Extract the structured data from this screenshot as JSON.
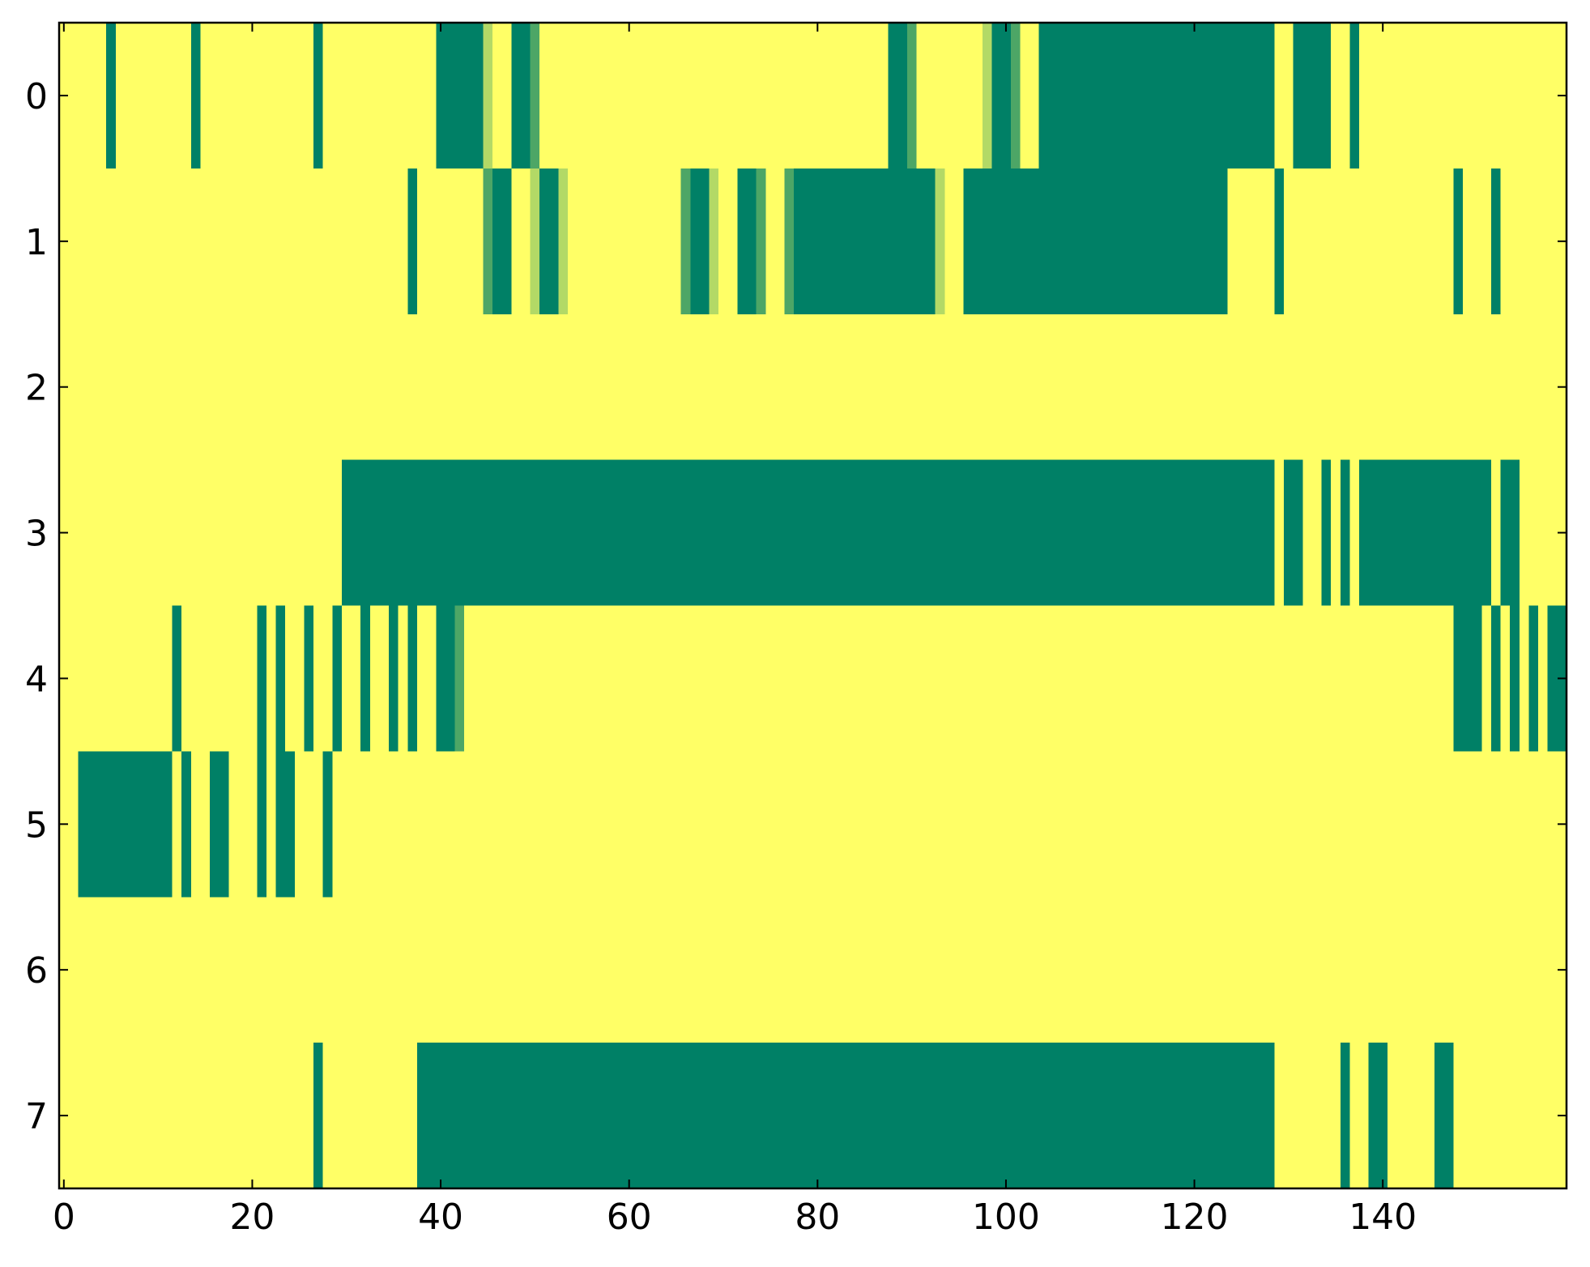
{
  "chart_data": {
    "type": "heatmap",
    "xlim": [
      -0.5,
      159.5
    ],
    "ylim": [
      7.5,
      -0.5
    ],
    "xticks": [
      0,
      20,
      40,
      60,
      80,
      100,
      120,
      140
    ],
    "yticks": [
      0,
      1,
      2,
      3,
      4,
      5,
      6,
      7
    ],
    "clim": [
      0,
      1
    ],
    "colors": [
      "#008066",
      "#ffff66"
    ],
    "z": [
      [
        1,
        1,
        1,
        1,
        1,
        0,
        1,
        1,
        1,
        1,
        1,
        1,
        1,
        1,
        0,
        1,
        1,
        1,
        1,
        1,
        1,
        1,
        1,
        1,
        1,
        1,
        1,
        0,
        1,
        1,
        1,
        1,
        1,
        1,
        1,
        1,
        1,
        1,
        1,
        1,
        0,
        0,
        0,
        0,
        0,
        0.7,
        1,
        1,
        0,
        0,
        0.3,
        1,
        1,
        1,
        1,
        1,
        1,
        1,
        1,
        1,
        1,
        1,
        1,
        1,
        1,
        1,
        1,
        1,
        1,
        1,
        1,
        1,
        1,
        1,
        1,
        1,
        1,
        1,
        1,
        1,
        1,
        1,
        1,
        1,
        1,
        1,
        1,
        1,
        0,
        0,
        0.3,
        1,
        1,
        1,
        1,
        1,
        1,
        1,
        0.7,
        0,
        0,
        0.3,
        1,
        1,
        0,
        0,
        0,
        0,
        0,
        0,
        0,
        0,
        0,
        0,
        0,
        0,
        0,
        0,
        0,
        0,
        0,
        0,
        0,
        0,
        0,
        0,
        0,
        0,
        0,
        1,
        1,
        0,
        0,
        0,
        0,
        1,
        1,
        0,
        1,
        1,
        1,
        1,
        1,
        1,
        1,
        1,
        1,
        1,
        1,
        1,
        1,
        1,
        1,
        1,
        1,
        1,
        1,
        1,
        1,
        1
      ],
      [
        1,
        1,
        1,
        1,
        1,
        1,
        1,
        1,
        1,
        1,
        1,
        1,
        1,
        1,
        1,
        1,
        1,
        1,
        1,
        1,
        1,
        1,
        1,
        1,
        1,
        1,
        1,
        1,
        1,
        1,
        1,
        1,
        1,
        1,
        1,
        1,
        1,
        0,
        1,
        1,
        1,
        1,
        1,
        1,
        1,
        0.3,
        0,
        0,
        1,
        1,
        0.7,
        0,
        0,
        0.7,
        1,
        1,
        1,
        1,
        1,
        1,
        1,
        1,
        1,
        1,
        1,
        1,
        0.3,
        0,
        0,
        0.7,
        1,
        1,
        0,
        0,
        0.3,
        1,
        1,
        0.3,
        0,
        0,
        0,
        0,
        0,
        0,
        0,
        0,
        0,
        0,
        0,
        0,
        0,
        0,
        0,
        0.7,
        1,
        1,
        0,
        0,
        0,
        0,
        0,
        0,
        0,
        0,
        0,
        0,
        0,
        0,
        0,
        0,
        0,
        0,
        0,
        0,
        0,
        0,
        0,
        0,
        0,
        0,
        0,
        0,
        0,
        0,
        1,
        1,
        1,
        1,
        1,
        0,
        1,
        1,
        1,
        1,
        1,
        1,
        1,
        1,
        1,
        1,
        1,
        1,
        1,
        1,
        1,
        1,
        1,
        1,
        0,
        1,
        1,
        1,
        0,
        1,
        1,
        1,
        1,
        1,
        1,
        1
      ],
      [
        1,
        1,
        1,
        1,
        1,
        1,
        1,
        1,
        1,
        1,
        1,
        1,
        1,
        1,
        1,
        1,
        1,
        1,
        1,
        1,
        1,
        1,
        1,
        1,
        1,
        1,
        1,
        1,
        1,
        1,
        1,
        1,
        1,
        1,
        1,
        1,
        1,
        1,
        1,
        1,
        1,
        1,
        1,
        1,
        1,
        1,
        1,
        1,
        1,
        1,
        1,
        1,
        1,
        1,
        1,
        1,
        1,
        1,
        1,
        1,
        1,
        1,
        1,
        1,
        1,
        1,
        1,
        1,
        1,
        1,
        1,
        1,
        1,
        1,
        1,
        1,
        1,
        1,
        1,
        1,
        1,
        1,
        1,
        1,
        1,
        1,
        1,
        1,
        1,
        1,
        1,
        1,
        1,
        1,
        1,
        1,
        1,
        1,
        1,
        1,
        1,
        1,
        1,
        1,
        1,
        1,
        1,
        1,
        1,
        1,
        1,
        1,
        1,
        1,
        1,
        1,
        1,
        1,
        1,
        1,
        1,
        1,
        1,
        1,
        1,
        1,
        1,
        1,
        1,
        1,
        1,
        1,
        1,
        1,
        1,
        1,
        1,
        1,
        1,
        1,
        1,
        1,
        1,
        1,
        1,
        1,
        1,
        1,
        1,
        1,
        1,
        1,
        1,
        1,
        1,
        1,
        1,
        1,
        1,
        1
      ],
      [
        1,
        1,
        1,
        1,
        1,
        1,
        1,
        1,
        1,
        1,
        1,
        1,
        1,
        1,
        1,
        1,
        1,
        1,
        1,
        1,
        1,
        1,
        1,
        1,
        1,
        1,
        1,
        1,
        1,
        1,
        0,
        0,
        0,
        0,
        0,
        0,
        0,
        0,
        0,
        0,
        0,
        0,
        0,
        0,
        0,
        0,
        0,
        0,
        0,
        0,
        0,
        0,
        0,
        0,
        0,
        0,
        0,
        0,
        0,
        0,
        0,
        0,
        0,
        0,
        0,
        0,
        0,
        0,
        0,
        0,
        0,
        0,
        0,
        0,
        0,
        0,
        0,
        0,
        0,
        0,
        0,
        0,
        0,
        0,
        0,
        0,
        0,
        0,
        0,
        0,
        0,
        0,
        0,
        0,
        0,
        0,
        0,
        0,
        0,
        0,
        0,
        0,
        0,
        0,
        0,
        0,
        0,
        0,
        0,
        0,
        0,
        0,
        0,
        0,
        0,
        0,
        0,
        0,
        0,
        0,
        0,
        0,
        0,
        0,
        0,
        0,
        0,
        0,
        0,
        1,
        0,
        0,
        1,
        1,
        0,
        1,
        0,
        1,
        0,
        0,
        0,
        0,
        0,
        0,
        0,
        0,
        0,
        0,
        0,
        0,
        0,
        0,
        1,
        0,
        0,
        1,
        1,
        1,
        1,
        1
      ],
      [
        1,
        1,
        1,
        1,
        1,
        1,
        1,
        1,
        1,
        1,
        1,
        1,
        0,
        1,
        1,
        1,
        1,
        1,
        1,
        1,
        1,
        0,
        1,
        0,
        1,
        1,
        0,
        1,
        1,
        0,
        1,
        1,
        0,
        1,
        1,
        0,
        1,
        0,
        1,
        1,
        0,
        0,
        0.3,
        1,
        1,
        1,
        1,
        1,
        1,
        1,
        1,
        1,
        1,
        1,
        1,
        1,
        1,
        1,
        1,
        1,
        1,
        1,
        1,
        1,
        1,
        1,
        1,
        1,
        1,
        1,
        1,
        1,
        1,
        1,
        1,
        1,
        1,
        1,
        1,
        1,
        1,
        1,
        1,
        1,
        1,
        1,
        1,
        1,
        1,
        1,
        1,
        1,
        1,
        1,
        1,
        1,
        1,
        1,
        1,
        1,
        1,
        1,
        1,
        1,
        1,
        1,
        1,
        1,
        1,
        1,
        1,
        1,
        1,
        1,
        1,
        1,
        1,
        1,
        1,
        1,
        1,
        1,
        1,
        1,
        1,
        1,
        1,
        1,
        1,
        1,
        1,
        1,
        1,
        1,
        1,
        1,
        1,
        1,
        1,
        1,
        1,
        1,
        1,
        1,
        1,
        1,
        1,
        1,
        0,
        0,
        0,
        1,
        0,
        1,
        0,
        1,
        0,
        1,
        0,
        0
      ],
      [
        1,
        1,
        0,
        0,
        0,
        0,
        0,
        0,
        0,
        0,
        0,
        0,
        1,
        0,
        1,
        1,
        0,
        0,
        1,
        1,
        1,
        0,
        1,
        0,
        0,
        1,
        1,
        1,
        0,
        1,
        1,
        1,
        1,
        1,
        1,
        1,
        1,
        1,
        1,
        1,
        1,
        1,
        1,
        1,
        1,
        1,
        1,
        1,
        1,
        1,
        1,
        1,
        1,
        1,
        1,
        1,
        1,
        1,
        1,
        1,
        1,
        1,
        1,
        1,
        1,
        1,
        1,
        1,
        1,
        1,
        1,
        1,
        1,
        1,
        1,
        1,
        1,
        1,
        1,
        1,
        1,
        1,
        1,
        1,
        1,
        1,
        1,
        1,
        1,
        1,
        1,
        1,
        1,
        1,
        1,
        1,
        1,
        1,
        1,
        1,
        1,
        1,
        1,
        1,
        1,
        1,
        1,
        1,
        1,
        1,
        1,
        1,
        1,
        1,
        1,
        1,
        1,
        1,
        1,
        1,
        1,
        1,
        1,
        1,
        1,
        1,
        1,
        1,
        1,
        1,
        1,
        1,
        1,
        1,
        1,
        1,
        1,
        1,
        1,
        1,
        1,
        1,
        1,
        1,
        1,
        1,
        1,
        1,
        1,
        1,
        1,
        1,
        1,
        1,
        1,
        1,
        1,
        1,
        1,
        1
      ],
      [
        1,
        1,
        1,
        1,
        1,
        1,
        1,
        1,
        1,
        1,
        1,
        1,
        1,
        1,
        1,
        1,
        1,
        1,
        1,
        1,
        1,
        1,
        1,
        1,
        1,
        1,
        1,
        1,
        1,
        1,
        1,
        1,
        1,
        1,
        1,
        1,
        1,
        1,
        1,
        1,
        1,
        1,
        1,
        1,
        1,
        1,
        1,
        1,
        1,
        1,
        1,
        1,
        1,
        1,
        1,
        1,
        1,
        1,
        1,
        1,
        1,
        1,
        1,
        1,
        1,
        1,
        1,
        1,
        1,
        1,
        1,
        1,
        1,
        1,
        1,
        1,
        1,
        1,
        1,
        1,
        1,
        1,
        1,
        1,
        1,
        1,
        1,
        1,
        1,
        1,
        1,
        1,
        1,
        1,
        1,
        1,
        1,
        1,
        1,
        1,
        1,
        1,
        1,
        1,
        1,
        1,
        1,
        1,
        1,
        1,
        1,
        1,
        1,
        1,
        1,
        1,
        1,
        1,
        1,
        1,
        1,
        1,
        1,
        1,
        1,
        1,
        1,
        1,
        1,
        1,
        1,
        1,
        1,
        1,
        1,
        1,
        1,
        1,
        1,
        1,
        1,
        1,
        1,
        1,
        1,
        1,
        1,
        1,
        1,
        1,
        1,
        1,
        1,
        1,
        1,
        1,
        1,
        1,
        1,
        1
      ],
      [
        1,
        1,
        1,
        1,
        1,
        1,
        1,
        1,
        1,
        1,
        1,
        1,
        1,
        1,
        1,
        1,
        1,
        1,
        1,
        1,
        1,
        1,
        1,
        1,
        1,
        1,
        1,
        0,
        1,
        1,
        1,
        1,
        1,
        1,
        1,
        1,
        1,
        1,
        0,
        0,
        0,
        0,
        0,
        0,
        0,
        0,
        0,
        0,
        0,
        0,
        0,
        0,
        0,
        0,
        0,
        0,
        0,
        0,
        0,
        0,
        0,
        0,
        0,
        0,
        0,
        0,
        0,
        0,
        0,
        0,
        0,
        0,
        0,
        0,
        0,
        0,
        0,
        0,
        0,
        0,
        0,
        0,
        0,
        0,
        0,
        0,
        0,
        0,
        0,
        0,
        0,
        0,
        0,
        0,
        0,
        0,
        0,
        0,
        0,
        0,
        0,
        0,
        0,
        0,
        0,
        0,
        0,
        0,
        0,
        0,
        0,
        0,
        0,
        0,
        0,
        0,
        0,
        0,
        0,
        0,
        0,
        0,
        0,
        0,
        0,
        0,
        0,
        0,
        0,
        1,
        1,
        1,
        1,
        1,
        1,
        1,
        0,
        1,
        1,
        0,
        0,
        1,
        1,
        1,
        1,
        1,
        0,
        0,
        1,
        1,
        1,
        1,
        1,
        1,
        1,
        1,
        1,
        1,
        1,
        1
      ]
    ]
  }
}
